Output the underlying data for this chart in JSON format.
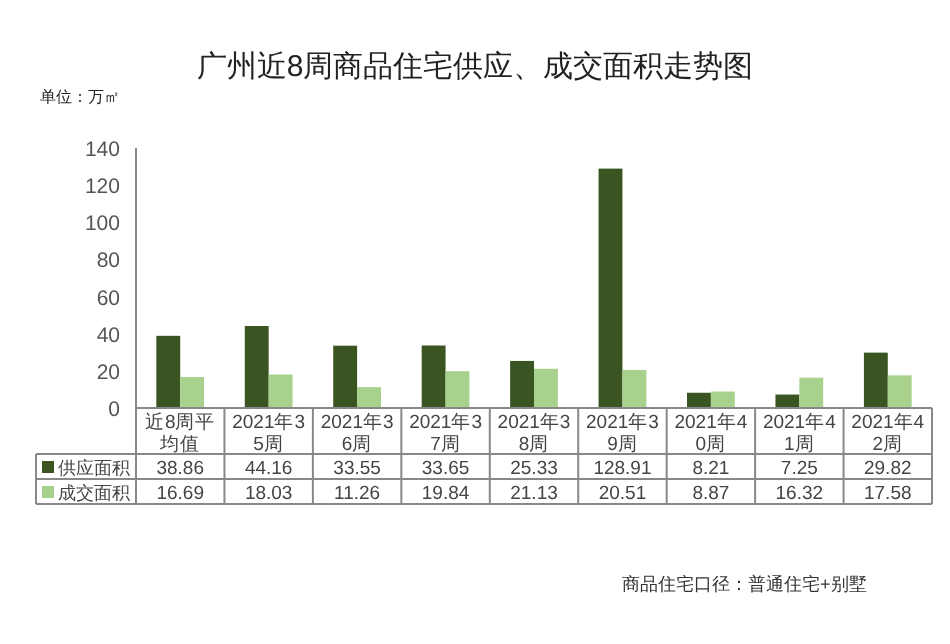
{
  "chart_data": {
    "type": "bar",
    "title": "广州近8周商品住宅供应、成交面积走势图",
    "categories": [
      "近8周平均值",
      "2021年35周",
      "2021年36周",
      "2021年37周",
      "2021年38周",
      "2021年39周",
      "2021年40周",
      "2021年41周",
      "2021年42周"
    ],
    "series": [
      {
        "name": "供应面积",
        "color": "#3a5522",
        "values": [
          38.86,
          44.16,
          33.55,
          33.65,
          25.33,
          128.91,
          8.21,
          7.25,
          29.82
        ]
      },
      {
        "name": "成交面积",
        "color": "#a9d18e",
        "values": [
          16.69,
          18.03,
          11.26,
          19.84,
          21.13,
          20.51,
          8.87,
          16.32,
          17.58
        ]
      }
    ],
    "ylim": [
      0,
      140
    ],
    "yticks": [
      0,
      20,
      40,
      60,
      80,
      100,
      120,
      140
    ],
    "data_labels": true,
    "legend": "bottom",
    "grid": false,
    "annotations": [
      "单位：万㎡",
      "商品住宅口径：普通住宅+别墅"
    ]
  }
}
